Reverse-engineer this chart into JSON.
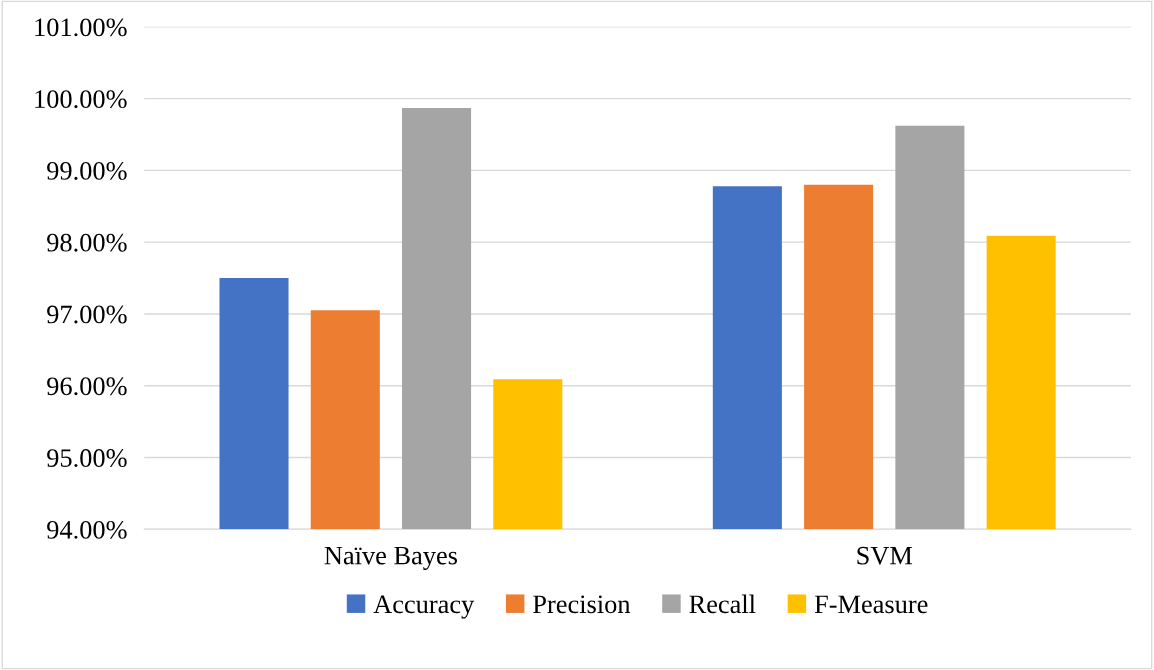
{
  "chart_data": {
    "type": "bar",
    "categories": [
      "Naïve Bayes",
      "SVM"
    ],
    "series": [
      {
        "name": "Accuracy",
        "color": "#4472c4",
        "values": [
          97.5,
          98.78
        ]
      },
      {
        "name": "Precision",
        "color": "#ed7d31",
        "values": [
          97.05,
          98.8
        ]
      },
      {
        "name": "Recall",
        "color": "#a5a5a5",
        "values": [
          99.87,
          99.62
        ]
      },
      {
        "name": "F-Measure",
        "color": "#ffc000",
        "values": [
          96.09,
          98.09
        ]
      }
    ],
    "ylim": [
      94,
      101
    ],
    "yticks": [
      {
        "value": 94,
        "label": "94.00%"
      },
      {
        "value": 95,
        "label": "95.00%"
      },
      {
        "value": 96,
        "label": "96.00%"
      },
      {
        "value": 97,
        "label": "97.00%"
      },
      {
        "value": 98,
        "label": "98.00%"
      },
      {
        "value": 99,
        "label": "99.00%"
      },
      {
        "value": 100,
        "label": "100.00%"
      },
      {
        "value": 101,
        "label": "101.00%"
      }
    ],
    "grid": "y",
    "legend": "bottom"
  }
}
